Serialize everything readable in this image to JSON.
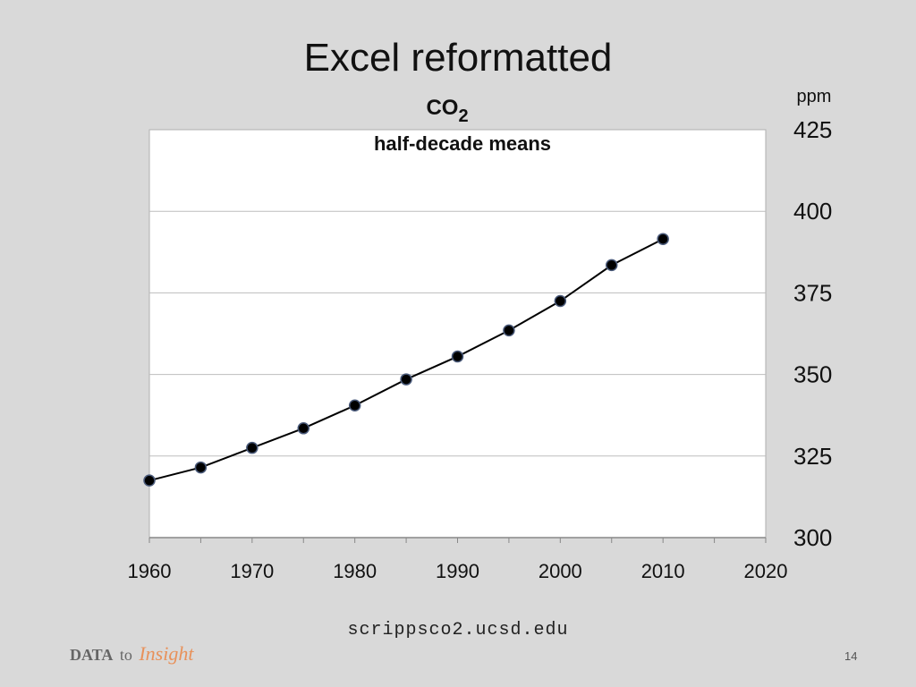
{
  "slide": {
    "title": "Excel reformatted",
    "source": "scrippsco2.ucsd.edu",
    "brand": {
      "part1": "DATA",
      "part2": "to",
      "part3": "Insight",
      "accent_color": "#e8915a"
    },
    "page_number": "14"
  },
  "chart_data": {
    "type": "line",
    "title": "CO",
    "title_subscript": "2",
    "subtitle": "half-decade means",
    "unit_label": "ppm",
    "xlim": [
      1960,
      2020
    ],
    "ylim": [
      300,
      425
    ],
    "x_ticks": [
      "1960",
      "1970",
      "1980",
      "1990",
      "2000",
      "2010",
      "2020"
    ],
    "y_ticks": [
      "300",
      "325",
      "350",
      "375",
      "400",
      "425"
    ],
    "grid": true,
    "series": [
      {
        "x": [
          1960,
          1965,
          1970,
          1975,
          1980,
          1985,
          1990,
          1995,
          2000,
          2005,
          2010
        ],
        "values": [
          317.5,
          321.5,
          327.5,
          333.5,
          340.5,
          348.5,
          355.5,
          363.5,
          372.5,
          383.5,
          391.5
        ],
        "color": "#000000"
      }
    ]
  }
}
